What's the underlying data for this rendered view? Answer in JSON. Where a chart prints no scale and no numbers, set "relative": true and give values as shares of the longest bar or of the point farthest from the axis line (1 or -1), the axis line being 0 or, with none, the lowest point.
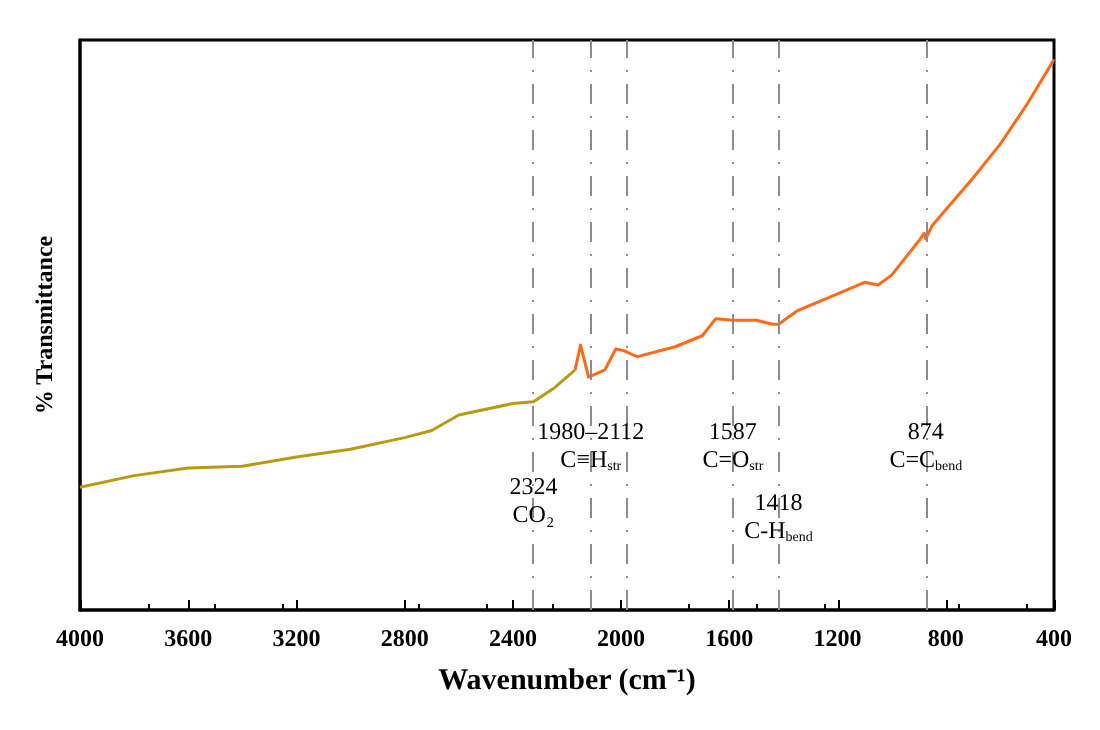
{
  "chart_data": {
    "type": "line",
    "relative": true,
    "xlabel": "Wavenumber (cm⁻¹)",
    "ylabel": "% Transmittance",
    "xlim": [
      4000,
      400
    ],
    "xticks": [
      4000,
      3600,
      3200,
      2800,
      2400,
      2000,
      1600,
      1200,
      800,
      400
    ],
    "series": [
      {
        "color": "#b89a14",
        "x": [
          4000,
          3800,
          3600,
          3400,
          3200,
          3000,
          2800,
          2700,
          2600,
          2400,
          2324,
          2250,
          2170
        ],
        "values": [
          0.223,
          0.244,
          0.258,
          0.261,
          0.278,
          0.292,
          0.313,
          0.326,
          0.354,
          0.375,
          0.378,
          0.402,
          0.436
        ]
      },
      {
        "color": "#ff6a1a",
        "x": [
          2170,
          2150,
          2120,
          2060,
          2020,
          1990,
          1960,
          1940,
          1800,
          1700,
          1650,
          1587,
          1500,
          1440,
          1418,
          1350,
          1200,
          1100,
          1050,
          1000,
          900,
          880,
          874,
          850,
          700,
          600,
          500,
          420,
          400
        ],
        "values": [
          0.436,
          0.481,
          0.423,
          0.436,
          0.474,
          0.471,
          0.464,
          0.46,
          0.478,
          0.498,
          0.529,
          0.526,
          0.526,
          0.519,
          0.519,
          0.543,
          0.574,
          0.595,
          0.59,
          0.608,
          0.67,
          0.684,
          0.674,
          0.698,
          0.784,
          0.845,
          0.918,
          0.983,
          1
        ]
      }
    ],
    "ref_lines": [
      {
        "axis": "x",
        "value": 2324,
        "color": "#8c8c8c",
        "line_style": "dashdot"
      },
      {
        "axis": "x",
        "value": 2112,
        "color": "#8c8c8c",
        "line_style": "dashdot"
      },
      {
        "axis": "x",
        "value": 1980,
        "color": "#8c8c8c",
        "line_style": "dashdot"
      },
      {
        "axis": "x",
        "value": 1587,
        "color": "#8c8c8c",
        "line_style": "dashdot"
      },
      {
        "axis": "x",
        "value": 1418,
        "color": "#8c8c8c",
        "line_style": "dashdot"
      },
      {
        "axis": "x",
        "value": 874,
        "color": "#8c8c8c",
        "line_style": "dashdot"
      }
    ],
    "annotations": [
      {
        "text": "2324\nCO₂",
        "x": 2324,
        "y": 0.2
      },
      {
        "text": "1980–2112\nC≡H$_{str}$",
        "x": 2112,
        "y": 0.3
      },
      {
        "text": "1587\nC=O$_{str}$",
        "x": 1587,
        "y": 0.3
      },
      {
        "text": "1418\nC-H$_{bend}$",
        "x": 1418,
        "y": 0.17
      },
      {
        "text": "874\nC=C$_{bend}$",
        "x": 874,
        "y": 0.3
      }
    ]
  }
}
